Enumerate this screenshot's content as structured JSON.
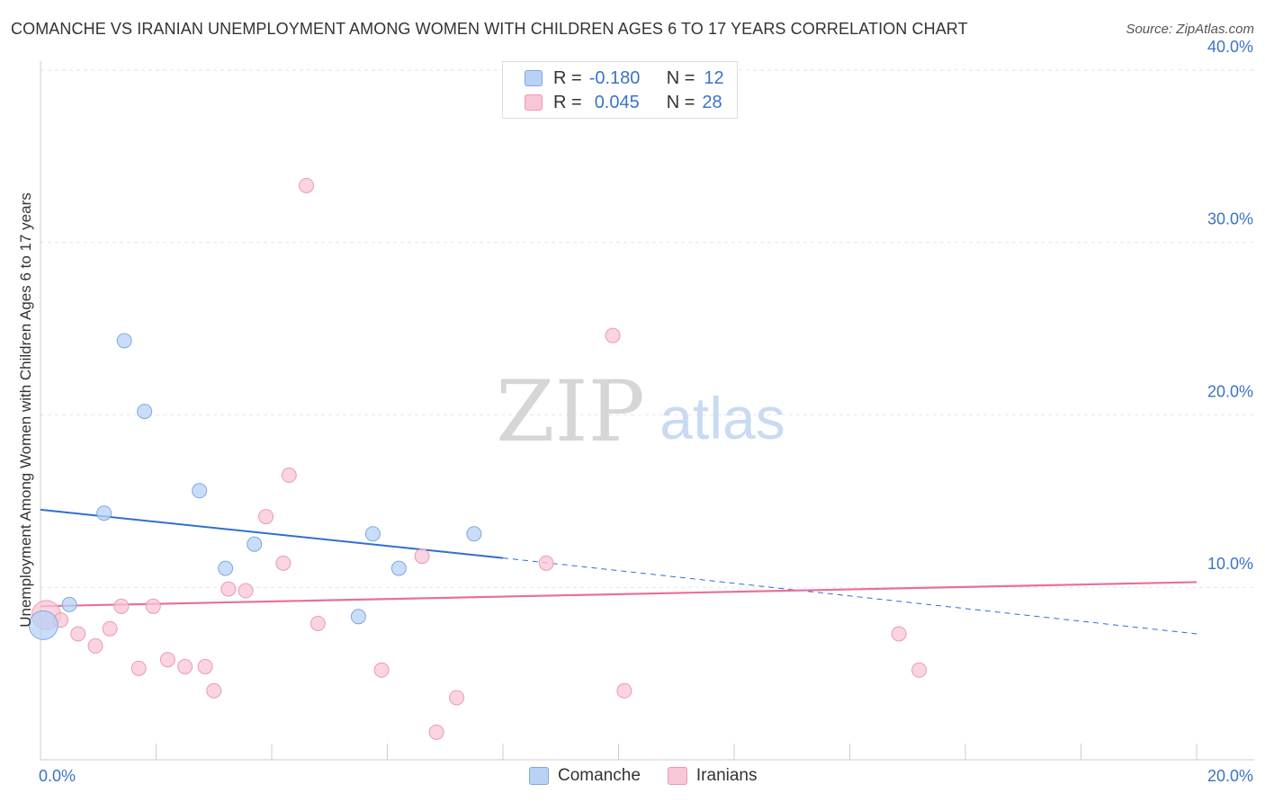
{
  "title": "COMANCHE VS IRANIAN UNEMPLOYMENT AMONG WOMEN WITH CHILDREN AGES 6 TO 17 YEARS CORRELATION CHART",
  "source": "Source: ZipAtlas.com",
  "watermark": {
    "zip": "ZIP",
    "atlas": "atlas"
  },
  "legend": {
    "comanche": {
      "r_label": "R =",
      "r_value": "-0.180",
      "n_label": "N =",
      "n_value": "12"
    },
    "iranians": {
      "r_label": "R =",
      "r_value": "0.045",
      "n_label": "N =",
      "n_value": "28"
    }
  },
  "bottom_legend": {
    "comanche": "Comanche",
    "iranians": "Iranians"
  },
  "colors": {
    "comanche_fill": "#b7d2f5",
    "comanche_stroke": "#7fa8e0",
    "comanche_line": "#2f6fd0",
    "iranians_fill": "#f8c6d6",
    "iranians_stroke": "#ec9ab4",
    "iranians_line": "#e8709a",
    "axis_label": "#3b73c8"
  },
  "chart_data": {
    "type": "scatter",
    "title": "COMANCHE VS IRANIAN UNEMPLOYMENT AMONG WOMEN WITH CHILDREN AGES 6 TO 17 YEARS CORRELATION CHART",
    "xlabel": "",
    "ylabel": "Unemployment Among Women with Children Ages 6 to 17 years",
    "xlim": [
      0,
      20
    ],
    "ylim": [
      0,
      40
    ],
    "x_tick_labels": [
      "0.0%",
      "20.0%"
    ],
    "y_ticks": [
      10,
      20,
      30,
      40
    ],
    "y_tick_labels": [
      "10.0%",
      "20.0%",
      "30.0%",
      "40.0%"
    ],
    "grid": true,
    "series": [
      {
        "name": "Comanche",
        "points": [
          {
            "x": 0.05,
            "y": 7.8,
            "size": "large"
          },
          {
            "x": 0.5,
            "y": 9.0
          },
          {
            "x": 1.1,
            "y": 14.3
          },
          {
            "x": 1.45,
            "y": 24.3
          },
          {
            "x": 1.8,
            "y": 20.2
          },
          {
            "x": 2.75,
            "y": 15.6
          },
          {
            "x": 3.2,
            "y": 11.1
          },
          {
            "x": 3.7,
            "y": 12.5
          },
          {
            "x": 5.5,
            "y": 8.3
          },
          {
            "x": 5.75,
            "y": 13.1
          },
          {
            "x": 6.2,
            "y": 11.1
          },
          {
            "x": 7.5,
            "y": 13.1
          }
        ],
        "trend": {
          "x0": 0,
          "y0": 14.5,
          "x1": 8.0,
          "y1": 11.7,
          "dashed_to_x": 20,
          "dashed_to_y": 7.3
        }
      },
      {
        "name": "Iranians",
        "points": [
          {
            "x": 0.1,
            "y": 8.4,
            "size": "large"
          },
          {
            "x": 0.35,
            "y": 8.1
          },
          {
            "x": 0.65,
            "y": 7.3
          },
          {
            "x": 0.95,
            "y": 6.6
          },
          {
            "x": 1.2,
            "y": 7.6
          },
          {
            "x": 1.4,
            "y": 8.9
          },
          {
            "x": 1.7,
            "y": 5.3
          },
          {
            "x": 1.95,
            "y": 8.9
          },
          {
            "x": 2.2,
            "y": 5.8
          },
          {
            "x": 2.5,
            "y": 5.4
          },
          {
            "x": 2.85,
            "y": 5.4
          },
          {
            "x": 3.0,
            "y": 4.0
          },
          {
            "x": 3.25,
            "y": 9.9
          },
          {
            "x": 3.55,
            "y": 9.8
          },
          {
            "x": 3.9,
            "y": 14.1
          },
          {
            "x": 4.2,
            "y": 11.4
          },
          {
            "x": 4.3,
            "y": 16.5
          },
          {
            "x": 4.6,
            "y": 33.3
          },
          {
            "x": 4.8,
            "y": 7.9
          },
          {
            "x": 5.9,
            "y": 5.2
          },
          {
            "x": 6.6,
            "y": 11.8
          },
          {
            "x": 6.85,
            "y": 1.6
          },
          {
            "x": 7.2,
            "y": 3.6
          },
          {
            "x": 8.75,
            "y": 11.4
          },
          {
            "x": 9.9,
            "y": 24.6
          },
          {
            "x": 10.1,
            "y": 4.0
          },
          {
            "x": 14.85,
            "y": 7.3
          },
          {
            "x": 15.2,
            "y": 5.2
          }
        ],
        "trend": {
          "x0": 0,
          "y0": 8.9,
          "x1": 20,
          "y1": 10.3
        }
      }
    ]
  }
}
